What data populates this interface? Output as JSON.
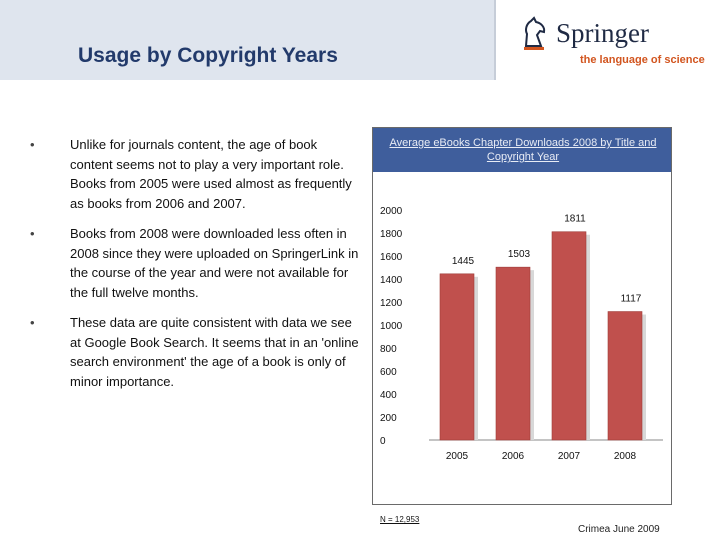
{
  "slide": {
    "title": "Usage by Copyright Years"
  },
  "logo": {
    "name": "Springer",
    "tagline": "the language of science"
  },
  "bullets": [
    "Unlike for journals content, the age of book content seems not to play a very important role. Books from 2005 were used almost as frequently as books from 2006 and 2007.",
    "Books from 2008 were downloaded less often in 2008 since they were uploaded on SpringerLink in the course of the year and were not available for the full twelve months.",
    "These data are quite consistent with data we see at Google Book Search. It seems that in an 'online search environment' the age of a book is only of minor importance."
  ],
  "chart_data": {
    "type": "bar",
    "title": "Average eBooks Chapter Downloads 2008 by Title and Copyright Year",
    "categories": [
      "2005",
      "2006",
      "2007",
      "2008"
    ],
    "values": [
      1445,
      1503,
      1811,
      1117
    ],
    "data_labels": [
      "1445",
      "1503",
      "1811",
      "1117"
    ],
    "yticks": [
      "0",
      "200",
      "400",
      "600",
      "800",
      "1000",
      "1200",
      "1400",
      "1600",
      "1800",
      "2000"
    ],
    "ylim": [
      0,
      2000
    ],
    "xlabel": "",
    "ylabel": "",
    "bar_color": "#c0504d",
    "legend": "none",
    "grid": false
  },
  "chart_note": "N = 12,953",
  "footer": "Crimea June 2009"
}
